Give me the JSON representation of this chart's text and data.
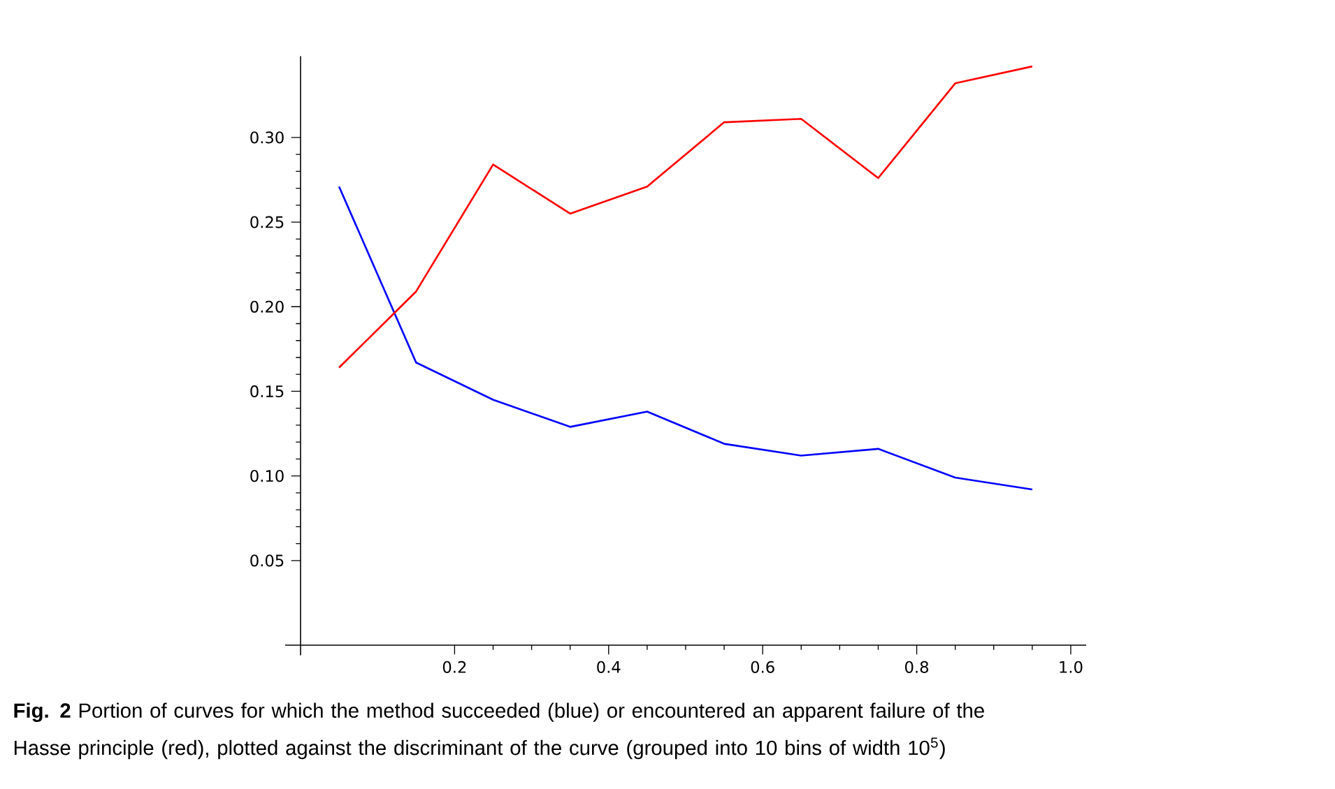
{
  "chart_data": {
    "type": "line",
    "x": [
      0.05,
      0.15,
      0.25,
      0.35,
      0.45,
      0.55,
      0.65,
      0.75,
      0.85,
      0.95
    ],
    "series": [
      {
        "color": "#0000ff",
        "values": [
          0.271,
          0.167,
          0.145,
          0.129,
          0.138,
          0.119,
          0.112,
          0.116,
          0.099,
          0.092
        ]
      },
      {
        "color": "#ff0000",
        "values": [
          0.164,
          0.209,
          0.284,
          0.255,
          0.271,
          0.309,
          0.311,
          0.276,
          0.332,
          0.342
        ]
      }
    ],
    "xlim": [
      -0.02,
      1.02
    ],
    "ylim": [
      -0.006,
      0.348
    ],
    "xticks": [
      0.2,
      0.4,
      0.6,
      0.8,
      {
        "value": 1.0,
        "label": "1.0"
      }
    ],
    "yticks": [
      0.05,
      {
        "value": 0.1,
        "label": "0.10"
      },
      0.15,
      {
        "value": 0.2,
        "label": "0.20"
      },
      0.25,
      {
        "value": 0.3,
        "label": "0.30"
      }
    ],
    "annotations": [
      "**Fig. 2**  Portion of curves for which the method succeeded (blue) or encountered an apparent failure of the Hasse principle (red), plotted against the discriminant of the curve (grouped into 10 bins of width 10$^{5}$)"
    ]
  }
}
